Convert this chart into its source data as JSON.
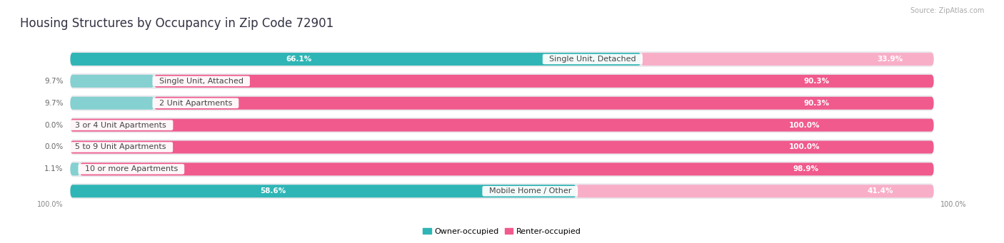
{
  "title": "Housing Structures by Occupancy in Zip Code 72901",
  "source": "Source: ZipAtlas.com",
  "categories": [
    "Single Unit, Detached",
    "Single Unit, Attached",
    "2 Unit Apartments",
    "3 or 4 Unit Apartments",
    "5 to 9 Unit Apartments",
    "10 or more Apartments",
    "Mobile Home / Other"
  ],
  "owner_pct": [
    66.1,
    9.7,
    9.7,
    0.0,
    0.0,
    1.1,
    58.6
  ],
  "renter_pct": [
    33.9,
    90.3,
    90.3,
    100.0,
    100.0,
    98.9,
    41.4
  ],
  "owner_color_dark": "#2fb5b5",
  "owner_color_light": "#85d0d0",
  "renter_color_dark": "#f05a8c",
  "renter_color_light": "#f9aec8",
  "row_bg": "#e8e8ec",
  "bar_inner_bg": "#d8d8e0",
  "title_fontsize": 12,
  "label_fontsize": 8,
  "pct_fontsize": 7.5,
  "legend_fontsize": 8,
  "source_fontsize": 7,
  "axis_label_fontsize": 7,
  "background_color": "#ffffff",
  "text_dark": "#444444",
  "text_light": "#ffffff",
  "text_outside": "#666666"
}
